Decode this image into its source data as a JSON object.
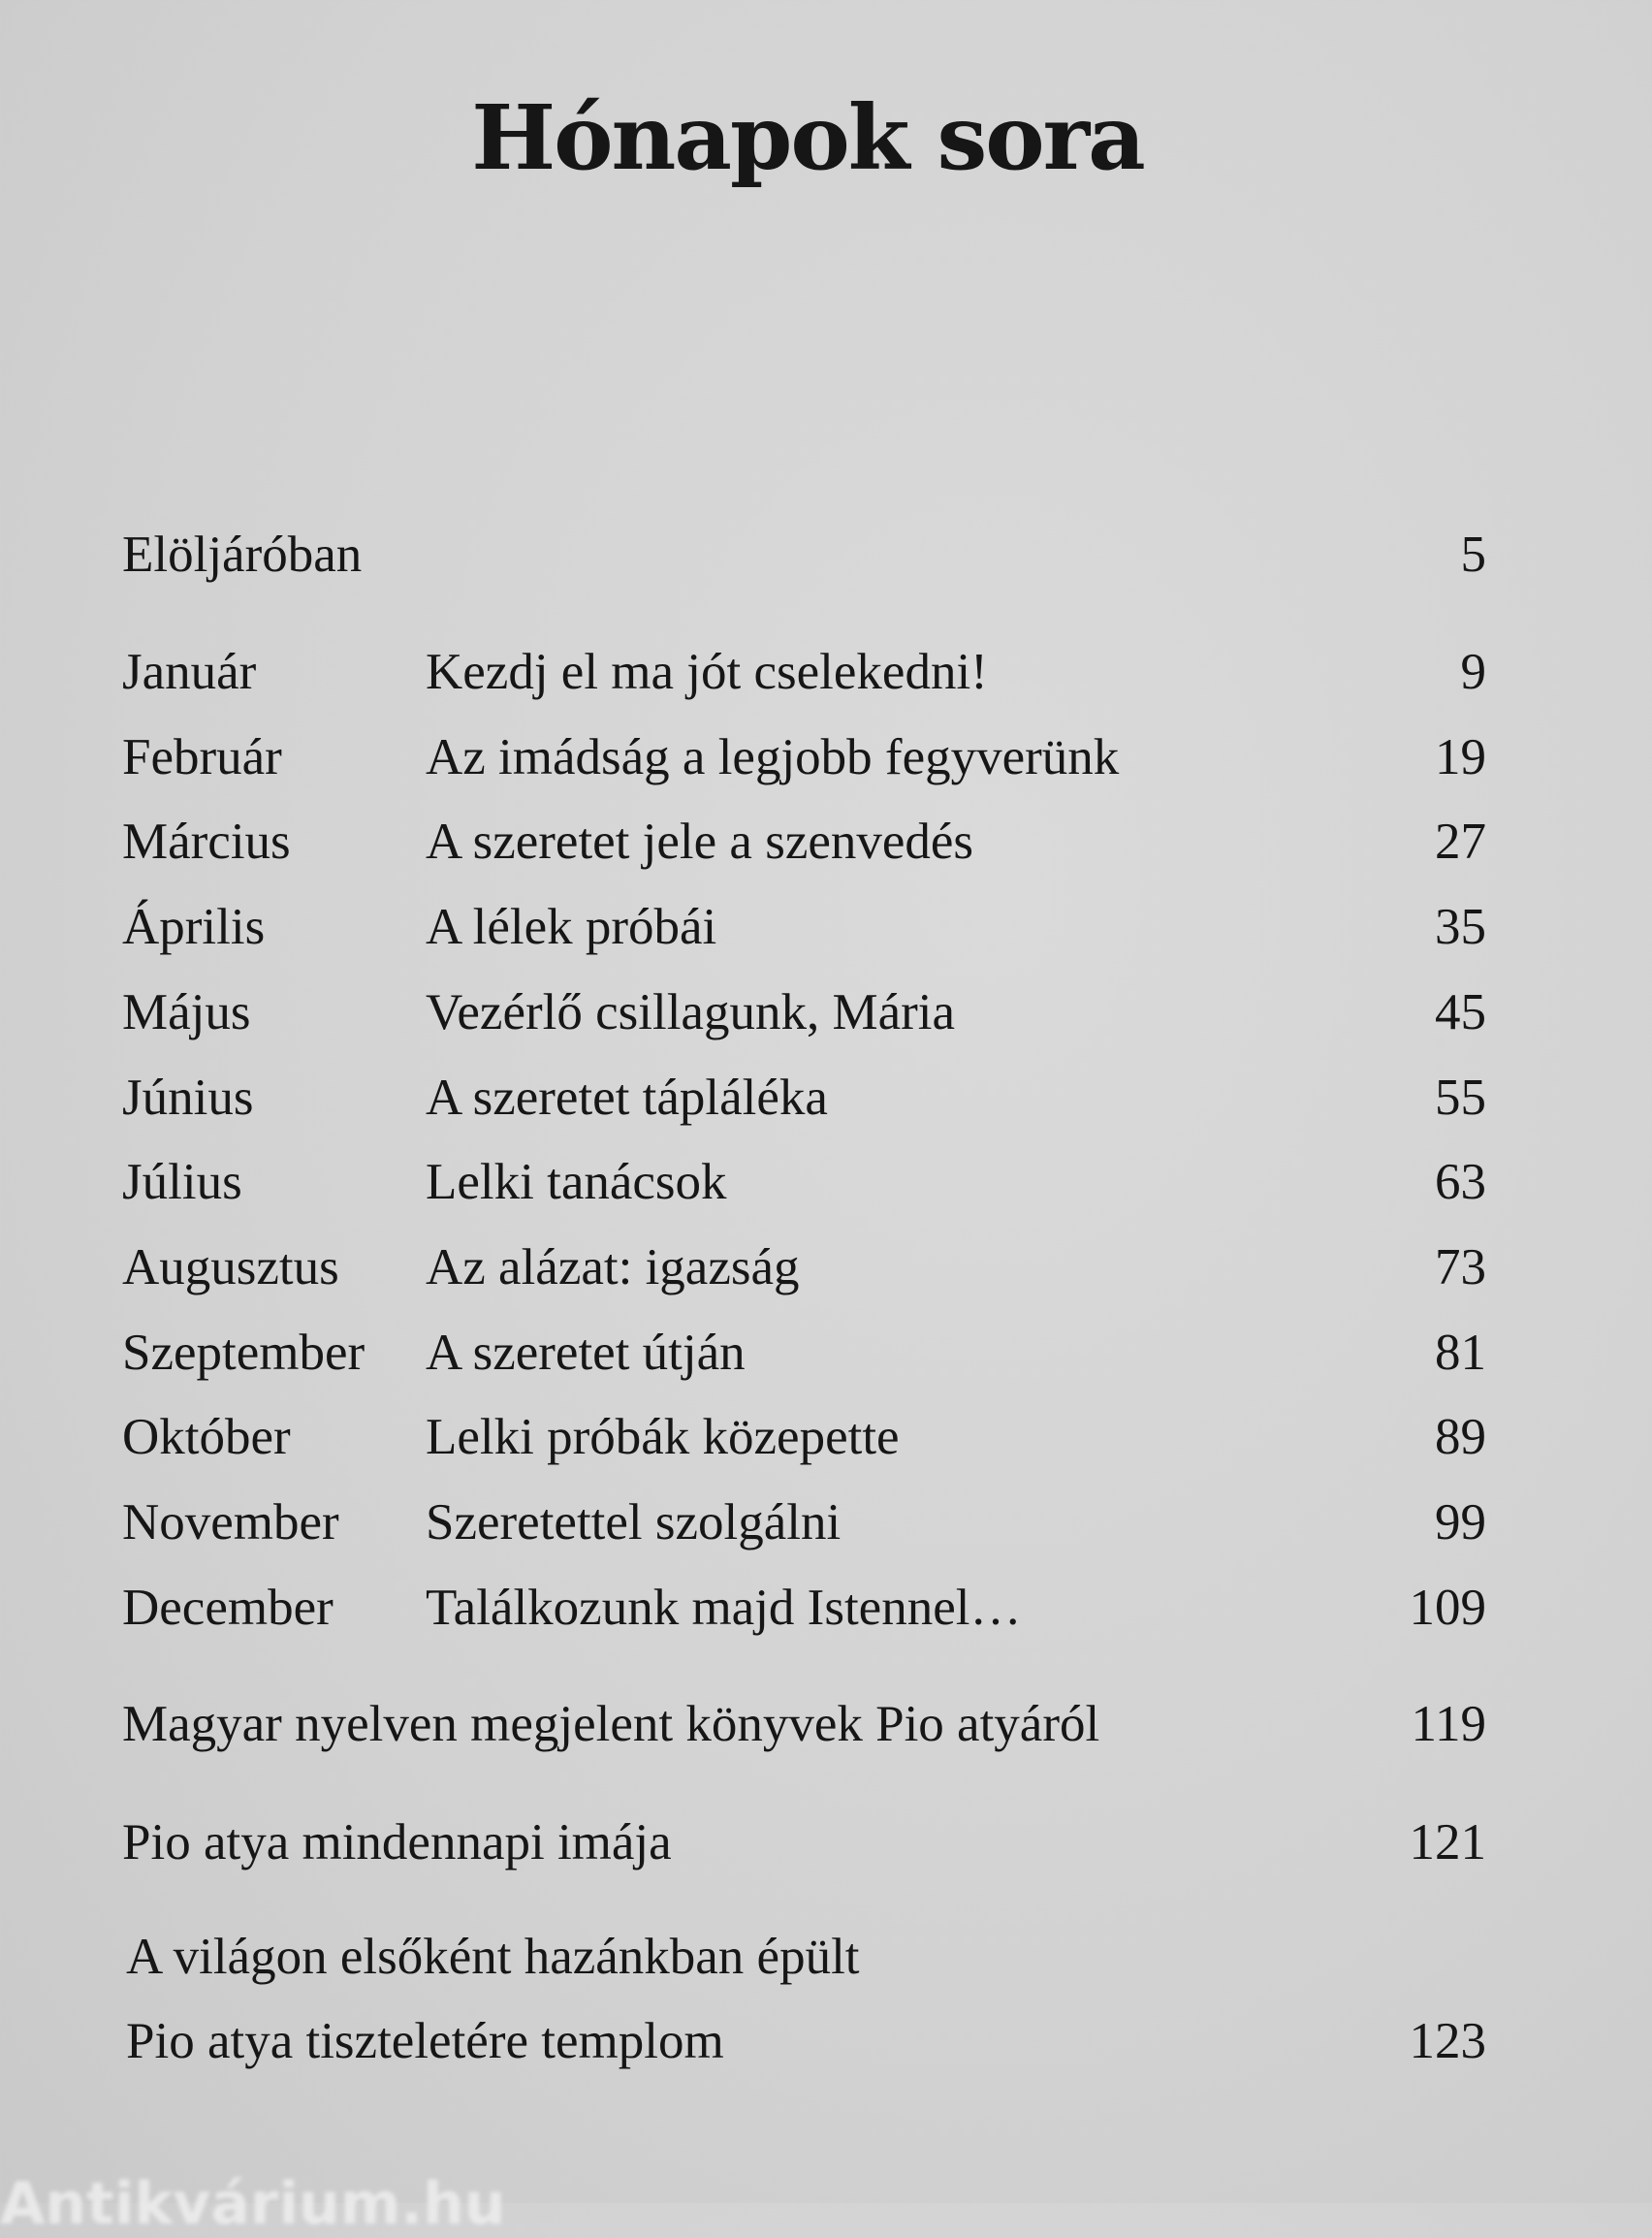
{
  "title": "Hónapok sora",
  "intro": {
    "label": "Elöljáróban",
    "page": "5"
  },
  "months": [
    {
      "month": "Január",
      "title": "Kezdj el ma jót cselekedni!",
      "page": "9"
    },
    {
      "month": "Február",
      "title": "Az imádság a legjobb fegyverünk",
      "page": "19"
    },
    {
      "month": "Március",
      "title": "A szeretet jele a szenvedés",
      "page": "27"
    },
    {
      "month": "Április",
      "title": "A lélek próbái",
      "page": "35"
    },
    {
      "month": "Május",
      "title": "Vezérlő csillagunk, Mária",
      "page": "45"
    },
    {
      "month": "Június",
      "title": "A szeretet tápláléka",
      "page": "55"
    },
    {
      "month": "Július",
      "title": "Lelki tanácsok",
      "page": "63"
    },
    {
      "month": "Augusztus",
      "title": "Az alázat: igazság",
      "page": "73"
    },
    {
      "month": "Szeptember",
      "title": "A szeretet útján",
      "page": "81"
    },
    {
      "month": "Október",
      "title": "Lelki próbák közepette",
      "page": "89"
    },
    {
      "month": "November",
      "title": "Szeretettel szolgálni",
      "page": "99"
    },
    {
      "month": "December",
      "title": "Találkozunk majd Istennel…",
      "page": "109"
    }
  ],
  "appendix": [
    {
      "label": "Magyar nyelven megjelent könyvek Pio atyáról",
      "page": "119"
    },
    {
      "label": "Pio atya mindennapi imája",
      "page": "121"
    },
    {
      "label_line1": "A világon elsőként hazánkban épült",
      "label": "Pio atya tiszteletére templom",
      "page": "123"
    }
  ],
  "watermark": "Antikvárium.hu"
}
